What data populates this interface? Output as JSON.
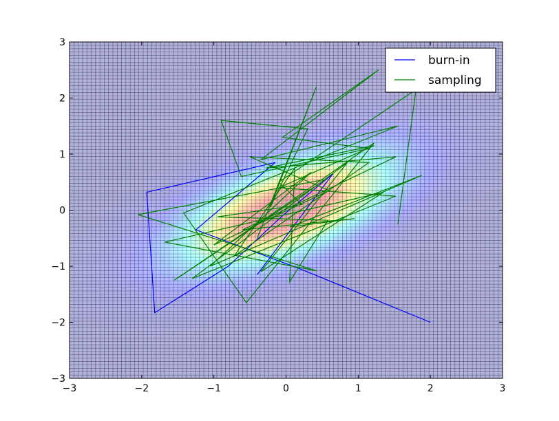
{
  "chart_data": {
    "type": "line",
    "title": "",
    "xlabel": "",
    "ylabel": "",
    "xlim": [
      -3,
      3
    ],
    "ylim": [
      -3,
      3
    ],
    "xticks": [
      -3,
      -2,
      -1,
      0,
      1,
      2,
      3
    ],
    "yticks": [
      -3,
      -2,
      -1,
      0,
      1,
      2,
      3
    ],
    "xtick_labels": [
      "−3",
      "−2",
      "−1",
      "0",
      "1",
      "2",
      "3"
    ],
    "ytick_labels": [
      "−3",
      "−2",
      "−1",
      "0",
      "1",
      "2",
      "3"
    ],
    "grid": true,
    "legend_position": "top-right",
    "background": {
      "type": "heatmap",
      "description": "bivariate gaussian density, positively correlated",
      "mean": [
        0,
        0
      ],
      "sigma_x": 1.0,
      "sigma_y": 0.7,
      "rho": 0.6,
      "colormap": "jet",
      "alpha": 0.3
    },
    "series": [
      {
        "name": "burn-in",
        "color": "#0000ff",
        "x": [
          2.0,
          0.2,
          -1.25,
          -0.15,
          -1.93,
          -1.82,
          -0.8,
          -0.05,
          0.65,
          -0.4
        ],
        "y": [
          -2.0,
          -1.05,
          -0.35,
          0.85,
          0.32,
          -1.83,
          -1.0,
          -0.1,
          0.65,
          -1.15
        ]
      },
      {
        "name": "sampling",
        "color": "#008000",
        "x": [
          -0.4,
          0.42,
          -0.22,
          0.3,
          -0.9,
          -0.62,
          1.15,
          -0.05,
          1.28,
          -0.35,
          1.55,
          -1.42,
          -0.55,
          1.22,
          0.0,
          -1.55,
          0.55,
          -2.05,
          0.42,
          -1.68,
          1.35,
          -0.35,
          0.85,
          -1.3,
          1.52,
          -0.1,
          1.22,
          -0.28,
          1.52,
          -0.6,
          0.95,
          0.05,
          1.88,
          -1.05,
          0.35,
          -1.0,
          0.6,
          -0.5,
          1.15,
          -0.72,
          0.12,
          0.05,
          0.58,
          -0.95,
          0.22,
          -0.1,
          1.8,
          1.55
        ],
        "y": [
          -0.5,
          2.2,
          0.05,
          1.45,
          1.6,
          0.6,
          1.1,
          1.3,
          2.5,
          0.9,
          1.5,
          -0.05,
          -1.65,
          1.2,
          0.1,
          -1.25,
          0.55,
          -0.08,
          -1.08,
          -0.57,
          0.32,
          -1.1,
          0.85,
          -1.22,
          0.25,
          0.4,
          1.15,
          0.75,
          0.95,
          -0.35,
          -0.15,
          -0.3,
          0.62,
          -1.0,
          0.68,
          -0.62,
          0.35,
          0.95,
          0.85,
          -0.82,
          0.75,
          -1.28,
          -0.18,
          -0.12,
          0.1,
          0.5,
          2.15,
          -0.25
        ]
      }
    ]
  }
}
